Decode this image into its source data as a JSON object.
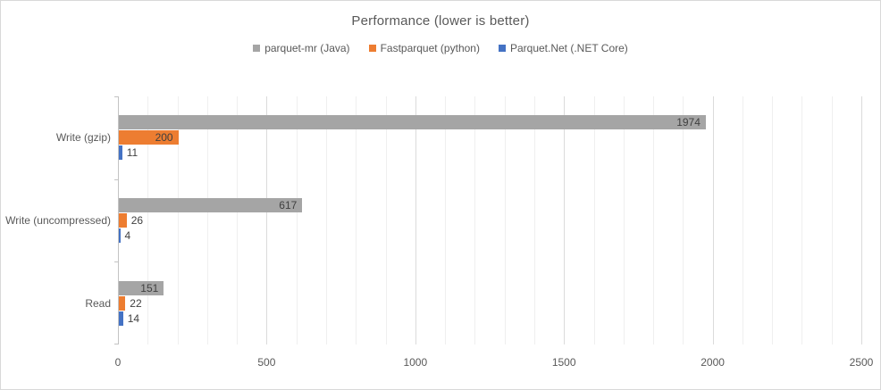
{
  "chart_data": {
    "type": "bar",
    "orientation": "horizontal",
    "title": "Performance (lower is better)",
    "categories": [
      "Write (gzip)",
      "Write (uncompressed)",
      "Read"
    ],
    "series": [
      {
        "name": "parquet-mr (Java)",
        "color": "#A5A5A5",
        "values": [
          1974,
          617,
          151
        ]
      },
      {
        "name": "Fastparquet (python)",
        "color": "#ED7D31",
        "values": [
          200,
          26,
          22
        ]
      },
      {
        "name": "Parquet.Net (.NET Core)",
        "color": "#4472C4",
        "values": [
          11,
          4,
          14
        ]
      }
    ],
    "xlim": [
      0,
      2500
    ],
    "x_major_ticks": [
      "0",
      "500",
      "1000",
      "1500",
      "2000",
      "2500"
    ],
    "x_minor_unit": 100,
    "x_major_unit": 500,
    "data_labels_visible": true,
    "legend_position": "top",
    "grid": true,
    "colors": {
      "title_text": "#595959",
      "axis_text": "#595959",
      "data_label_text": "#404040",
      "minor_gridline": "#EFEFEF",
      "major_gridline": "#DBDBDB",
      "chart_border": "#D9D9D9"
    }
  }
}
